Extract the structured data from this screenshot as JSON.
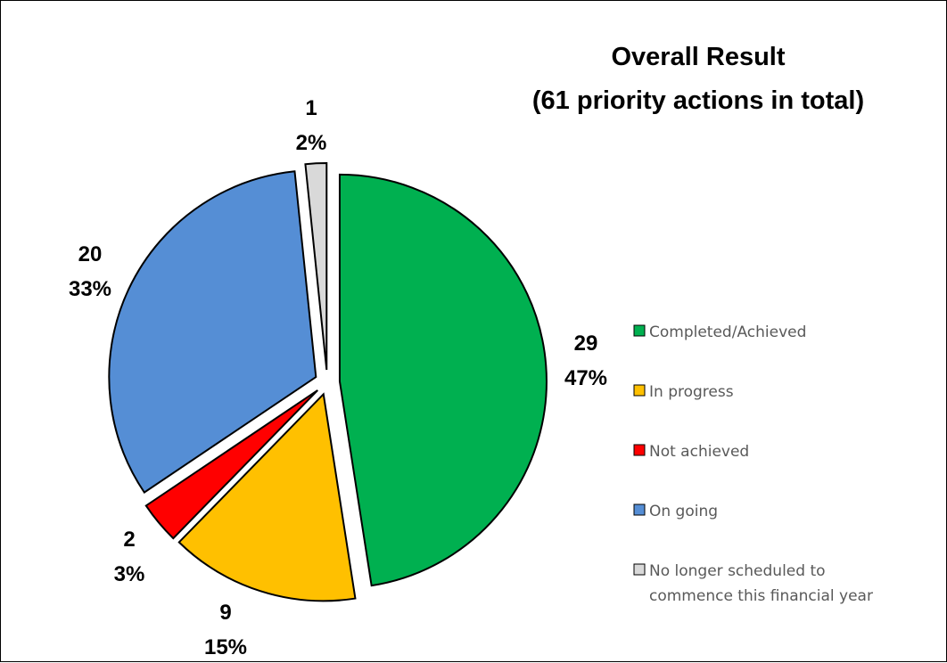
{
  "chart_data": {
    "type": "pie",
    "title": [
      "Overall Result",
      "(61 priority actions in total)"
    ],
    "total": 61,
    "slices": [
      {
        "label": "Completed/Achieved",
        "value": 29,
        "percent": "47%",
        "color": "#00B050"
      },
      {
        "label": "In progress",
        "value": 9,
        "percent": "15%",
        "color": "#FFC000"
      },
      {
        "label": "Not achieved",
        "value": 2,
        "percent": "3%",
        "color": "#FF0000"
      },
      {
        "label": "On going",
        "value": 20,
        "percent": "33%",
        "color": "#558ED5"
      },
      {
        "label": "No longer scheduled to commence this financial year",
        "value": 1,
        "percent": "2%",
        "color": "#D9D9D9"
      }
    ],
    "legend": {
      "position": "right",
      "items": [
        {
          "lines": [
            "Completed/Achieved"
          ],
          "color": "#00B050"
        },
        {
          "lines": [
            "In progress"
          ],
          "color": "#FFC000"
        },
        {
          "lines": [
            "Not achieved"
          ],
          "color": "#FF0000"
        },
        {
          "lines": [
            "On going"
          ],
          "color": "#558ED5"
        },
        {
          "lines": [
            "No longer scheduled to",
            "commence this financial year"
          ],
          "color": "#D9D9D9"
        }
      ]
    }
  }
}
